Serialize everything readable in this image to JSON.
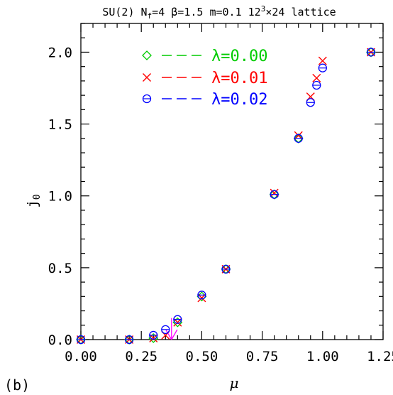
{
  "chart_data": {
    "type": "scatter",
    "title": {
      "pre": "SU(2) N",
      "nf_sub": "f",
      "mid": "=4 β=1.5 m=0.1 12",
      "sup": "3",
      "post": "×24 lattice"
    },
    "xlabel": "μ",
    "ylabel": {
      "main": "j",
      "sub": "0"
    },
    "panel_label": "(b)",
    "xlim": [
      0.0,
      1.25
    ],
    "ylim": [
      0.0,
      2.2
    ],
    "xticks": [
      "0.00",
      "0.25",
      "0.50",
      "0.75",
      "1.00",
      "1.25"
    ],
    "yticks": [
      "0.0",
      "0.5",
      "1.0",
      "1.5",
      "2.0"
    ],
    "legend_placement": "top-left",
    "series": [
      {
        "name": "λ=0.00",
        "marker": "diamond",
        "color": "#00cc00",
        "x": [
          0.0,
          0.2,
          0.3,
          0.4,
          0.5,
          0.6,
          0.8,
          0.9,
          1.2
        ],
        "y": [
          0.0,
          0.0,
          0.01,
          0.12,
          0.3,
          0.49,
          1.01,
          1.4,
          2.0
        ]
      },
      {
        "name": "λ=0.01",
        "marker": "cross",
        "color": "#ff0000",
        "x": [
          0.0,
          0.2,
          0.3,
          0.35,
          0.4,
          0.5,
          0.6,
          0.8,
          0.9,
          0.95,
          0.975,
          1.0,
          1.2
        ],
        "y": [
          0.0,
          0.0,
          0.01,
          0.03,
          0.12,
          0.29,
          0.49,
          1.02,
          1.42,
          1.69,
          1.82,
          1.94,
          2.0
        ]
      },
      {
        "name": "λ=0.02",
        "marker": "circle",
        "color": "#0000ff",
        "x": [
          0.0,
          0.2,
          0.3,
          0.35,
          0.4,
          0.5,
          0.6,
          0.8,
          0.9,
          0.95,
          0.975,
          1.0,
          1.2
        ],
        "y": [
          0.0,
          0.0,
          0.03,
          0.07,
          0.14,
          0.31,
          0.49,
          1.01,
          1.4,
          1.65,
          1.77,
          1.89,
          2.0
        ]
      }
    ],
    "annotation": {
      "type": "arrow",
      "color": "#ff00ff",
      "x": 0.375,
      "y_from": 0.15,
      "y_to": 0.0
    }
  }
}
